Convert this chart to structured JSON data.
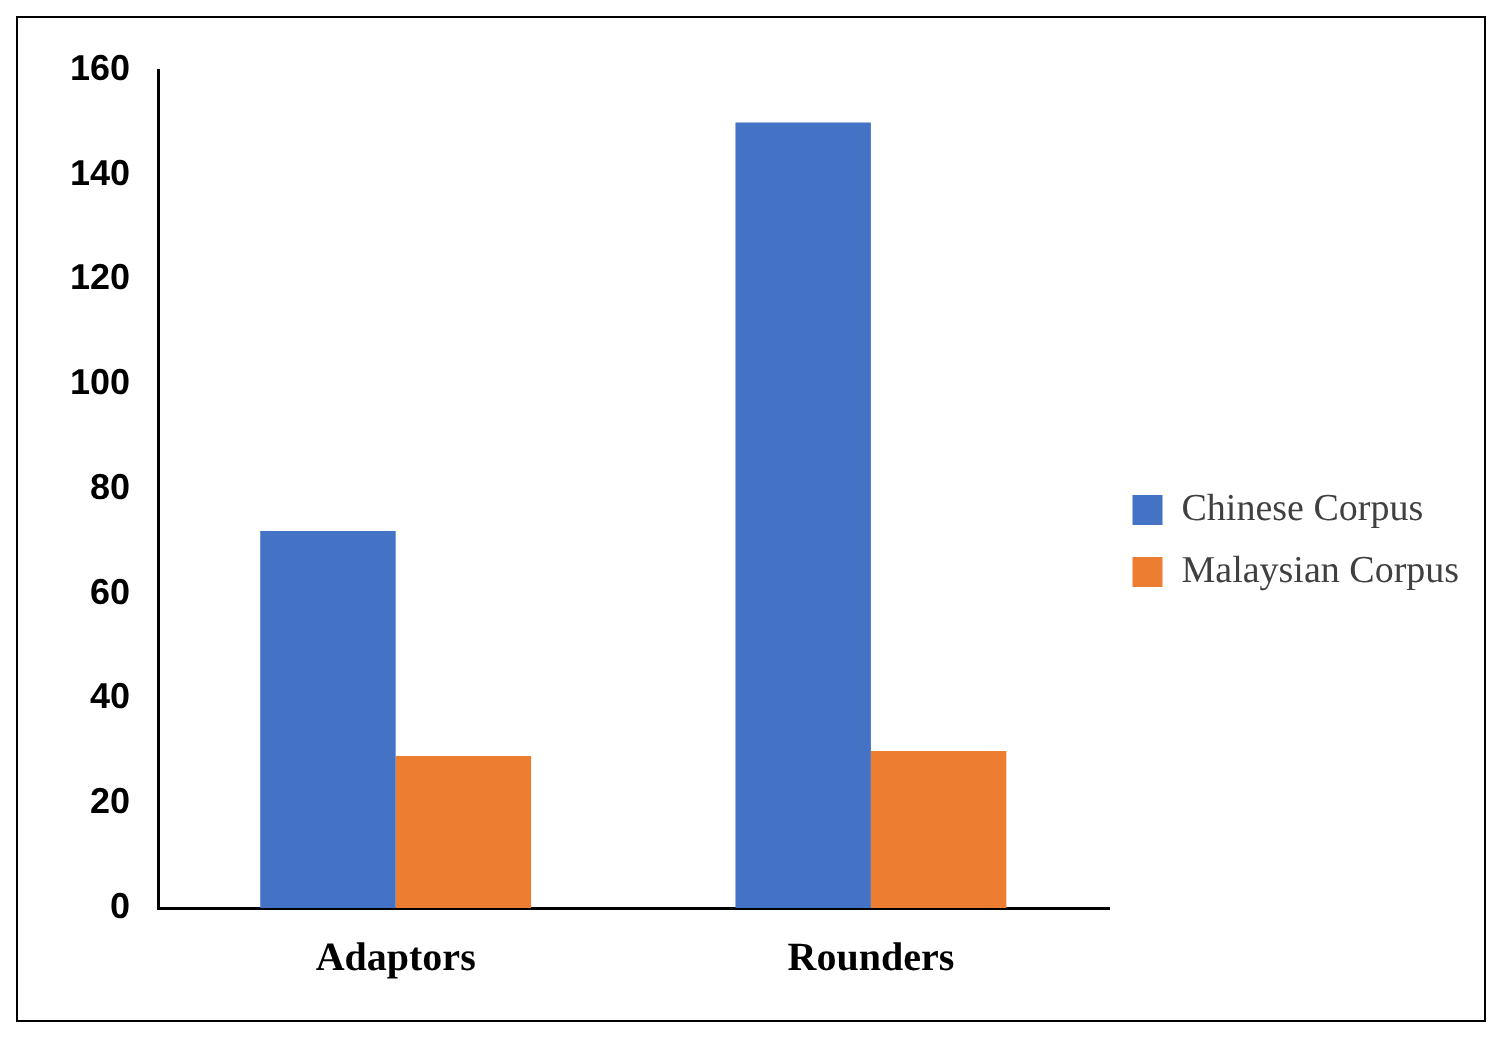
{
  "chart_data": {
    "type": "bar",
    "categories": [
      "Adaptors",
      "Rounders"
    ],
    "series": [
      {
        "name": "Chinese Corpus",
        "color": "#4472c4",
        "values": [
          72,
          150
        ]
      },
      {
        "name": "Malaysian Corpus",
        "color": "#ed7d31",
        "values": [
          29,
          30
        ]
      }
    ],
    "ylim": [
      0,
      160
    ],
    "yticks": [
      0,
      20,
      40,
      60,
      80,
      100,
      120,
      140,
      160
    ],
    "grid": false,
    "legend": "right"
  }
}
